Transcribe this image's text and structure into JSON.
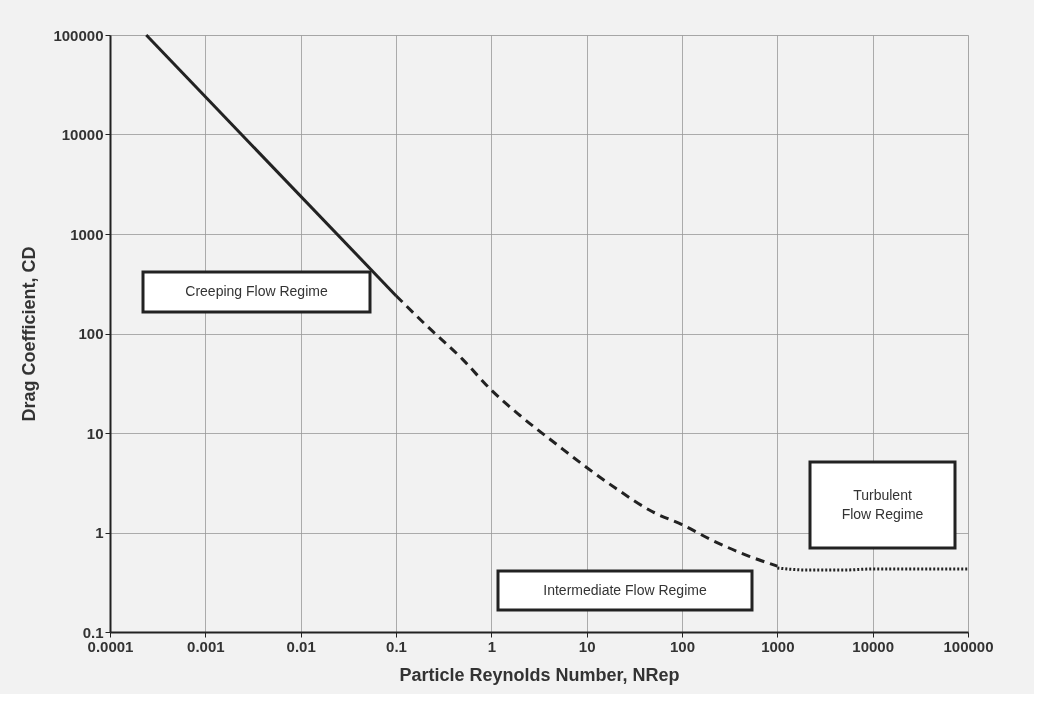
{
  "chart_data": {
    "type": "line",
    "xlabel": "Particle Reynolds Number, NRep",
    "ylabel": "Drag Coefficient, CD",
    "series": [
      {
        "color": "#222222",
        "line_style": "solid",
        "x": [
          0.00024,
          0.1
        ],
        "values": [
          100000,
          240
        ]
      },
      {
        "color": "#222222",
        "line_style": "dashed",
        "x": [
          0.1,
          0.2,
          0.5,
          1,
          2,
          5,
          10,
          20,
          50,
          100,
          200,
          500,
          1000
        ],
        "values": [
          240,
          125,
          55,
          27,
          15,
          7.5,
          4.5,
          2.8,
          1.6,
          1.2,
          0.85,
          0.58,
          0.46
        ]
      },
      {
        "color": "#222222",
        "line_style": "dotted",
        "x": [
          1000,
          2000,
          5000,
          10000,
          100000
        ],
        "values": [
          0.44,
          0.42,
          0.42,
          0.43,
          0.43
        ]
      }
    ],
    "xlim": [
      0.0001,
      100000
    ],
    "ylim": [
      0.1,
      100000
    ],
    "xticks": [
      0.0001,
      0.001,
      0.01,
      0.1,
      1,
      10,
      100,
      1000,
      10000,
      100000
    ],
    "yticks": [
      0.1,
      1,
      10,
      100,
      1000,
      10000,
      100000
    ],
    "log": "xy",
    "grid": true,
    "marker": "none",
    "annotations": [
      "Creeping Flow Regime",
      "Intermediate Flow Regime",
      "Turbulent\nFlow Regime"
    ]
  }
}
